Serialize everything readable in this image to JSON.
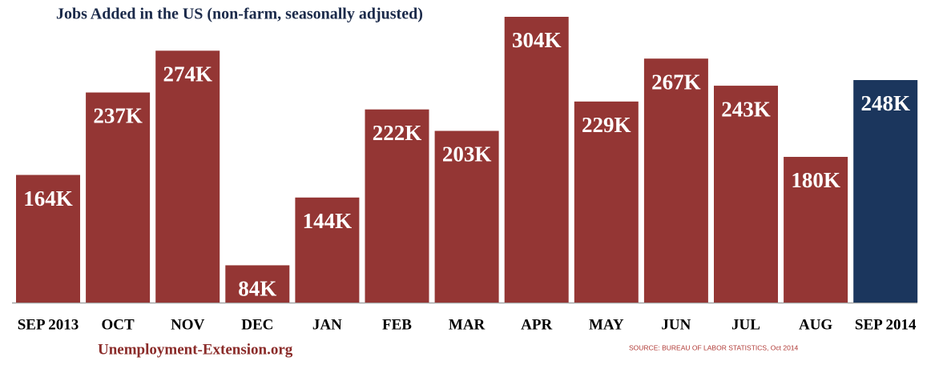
{
  "chart_data": {
    "type": "bar",
    "title": "Jobs Added in the US (non-farm, seasonally adjusted)",
    "categories": [
      "SEP 2013",
      "OCT",
      "NOV",
      "DEC",
      "JAN",
      "FEB",
      "MAR",
      "APR",
      "MAY",
      "JUN",
      "JUL",
      "AUG",
      "SEP 2014"
    ],
    "values": [
      164,
      237,
      274,
      84,
      144,
      222,
      203,
      304,
      229,
      267,
      243,
      180,
      248
    ],
    "value_labels": [
      "164K",
      "237K",
      "274K",
      "84K",
      "144K",
      "222K",
      "203K",
      "304K",
      "229K",
      "267K",
      "243K",
      "180K",
      "248K"
    ],
    "colors": [
      "#943634",
      "#943634",
      "#943634",
      "#943634",
      "#943634",
      "#943634",
      "#943634",
      "#943634",
      "#943634",
      "#943634",
      "#943634",
      "#943634",
      "#1b365d"
    ],
    "ylim": [
      51,
      304
    ],
    "website": "Unemployment-Extension.org",
    "source": "SOURCE: BUREAU OF LABOR STATISTICS, Oct 2014"
  }
}
